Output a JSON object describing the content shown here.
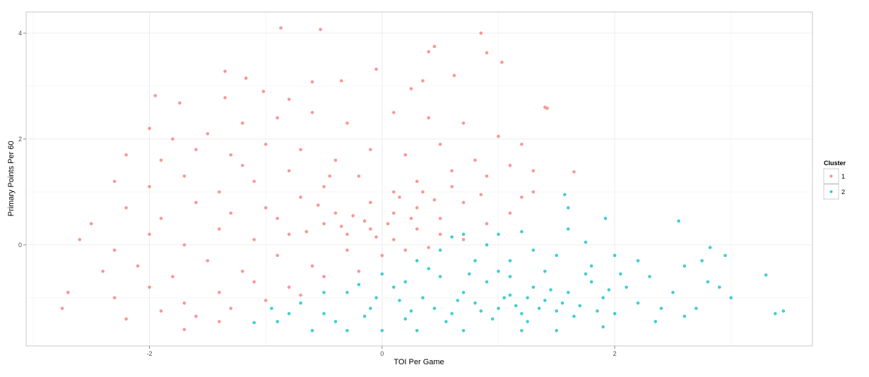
{
  "chart_data": {
    "type": "scatter",
    "title": "",
    "xlabel": "TOI Per Game",
    "ylabel": "Primary Points Per 60",
    "xlim": [
      -3.06,
      3.7
    ],
    "ylim": [
      -1.91,
      4.4
    ],
    "x_ticks": [
      -2,
      0,
      2
    ],
    "y_ticks": [
      0,
      2,
      4
    ],
    "x_tick_labels": [
      "-2",
      "0",
      "2"
    ],
    "y_tick_labels": [
      "0",
      "2",
      "4"
    ],
    "grid": true,
    "legend": {
      "title": "Cluster",
      "placement": "right"
    },
    "series": [
      {
        "name": "1",
        "color": "#F8766D",
        "points": [
          [
            -0.87,
            4.1
          ],
          [
            -0.53,
            4.07
          ],
          [
            0.85,
            4.0
          ],
          [
            0.9,
            3.63
          ],
          [
            1.03,
            3.45
          ],
          [
            0.45,
            3.75
          ],
          [
            0.4,
            3.65
          ],
          [
            -1.35,
            3.28
          ],
          [
            -1.17,
            3.15
          ],
          [
            0.62,
            3.2
          ],
          [
            -0.05,
            3.32
          ],
          [
            -0.35,
            3.1
          ],
          [
            -0.6,
            3.08
          ],
          [
            -1.95,
            2.82
          ],
          [
            -1.74,
            2.68
          ],
          [
            -1.35,
            2.78
          ],
          [
            -1.02,
            2.9
          ],
          [
            -0.8,
            2.75
          ],
          [
            0.25,
            2.95
          ],
          [
            0.35,
            3.1
          ],
          [
            1.4,
            2.6
          ],
          [
            1.42,
            2.58
          ],
          [
            -2.0,
            2.2
          ],
          [
            -1.8,
            2.0
          ],
          [
            -1.5,
            2.1
          ],
          [
            -1.2,
            2.3
          ],
          [
            -0.9,
            2.4
          ],
          [
            -0.6,
            2.5
          ],
          [
            -0.3,
            2.3
          ],
          [
            0.1,
            2.5
          ],
          [
            0.4,
            2.4
          ],
          [
            0.7,
            2.3
          ],
          [
            1.0,
            2.05
          ],
          [
            1.2,
            1.9
          ],
          [
            -2.2,
            1.7
          ],
          [
            -1.9,
            1.6
          ],
          [
            -1.6,
            1.8
          ],
          [
            -1.3,
            1.7
          ],
          [
            -1.0,
            1.9
          ],
          [
            -0.7,
            1.8
          ],
          [
            -0.4,
            1.6
          ],
          [
            -0.1,
            1.8
          ],
          [
            0.2,
            1.7
          ],
          [
            0.5,
            1.9
          ],
          [
            0.8,
            1.6
          ],
          [
            1.1,
            1.5
          ],
          [
            1.3,
            1.4
          ],
          [
            1.65,
            1.38
          ],
          [
            -2.3,
            1.2
          ],
          [
            -2.0,
            1.1
          ],
          [
            -1.7,
            1.3
          ],
          [
            -1.4,
            1.0
          ],
          [
            -1.1,
            1.2
          ],
          [
            -0.8,
            1.4
          ],
          [
            -0.5,
            1.1
          ],
          [
            -0.2,
            1.3
          ],
          [
            0.1,
            1.0
          ],
          [
            0.3,
            1.2
          ],
          [
            0.6,
            1.1
          ],
          [
            0.9,
            1.3
          ],
          [
            1.2,
            0.9
          ],
          [
            1.3,
            1.0
          ],
          [
            -2.5,
            0.4
          ],
          [
            -2.2,
            0.7
          ],
          [
            -1.9,
            0.5
          ],
          [
            -1.6,
            0.8
          ],
          [
            -1.3,
            0.6
          ],
          [
            -1.0,
            0.7
          ],
          [
            -0.7,
            0.9
          ],
          [
            -0.4,
            0.6
          ],
          [
            -0.1,
            0.8
          ],
          [
            0.1,
            0.6
          ],
          [
            0.3,
            0.7
          ],
          [
            0.5,
            0.5
          ],
          [
            0.7,
            0.8
          ],
          [
            0.9,
            0.4
          ],
          [
            1.1,
            0.6
          ],
          [
            -2.6,
            0.1
          ],
          [
            -2.3,
            -0.1
          ],
          [
            -2.0,
            0.2
          ],
          [
            -1.7,
            0.0
          ],
          [
            -1.4,
            0.3
          ],
          [
            -1.1,
            0.1
          ],
          [
            -0.8,
            0.2
          ],
          [
            -0.5,
            0.4
          ],
          [
            -0.3,
            0.2
          ],
          [
            -0.1,
            0.3
          ],
          [
            0.1,
            0.1
          ],
          [
            0.3,
            0.3
          ],
          [
            0.5,
            0.2
          ],
          [
            0.7,
            0.1
          ],
          [
            -2.4,
            -0.5
          ],
          [
            -2.1,
            -0.4
          ],
          [
            -1.8,
            -0.6
          ],
          [
            -1.5,
            -0.3
          ],
          [
            -1.2,
            -0.5
          ],
          [
            -0.9,
            -0.2
          ],
          [
            -0.6,
            -0.4
          ],
          [
            -0.3,
            -0.1
          ],
          [
            0.0,
            -0.2
          ],
          [
            0.2,
            -0.1
          ],
          [
            0.4,
            -0.05
          ],
          [
            -2.7,
            -0.9
          ],
          [
            -2.3,
            -1.0
          ],
          [
            -2.0,
            -0.8
          ],
          [
            -1.7,
            -1.1
          ],
          [
            -1.4,
            -0.9
          ],
          [
            -1.1,
            -0.7
          ],
          [
            -0.8,
            -0.8
          ],
          [
            -0.5,
            -0.6
          ],
          [
            -0.2,
            -0.5
          ],
          [
            -2.75,
            -1.2
          ],
          [
            -2.2,
            -1.4
          ],
          [
            -1.9,
            -1.25
          ],
          [
            -1.6,
            -1.35
          ],
          [
            -1.3,
            -1.2
          ],
          [
            -1.0,
            -1.05
          ],
          [
            -0.7,
            -0.95
          ],
          [
            -1.7,
            -1.6
          ],
          [
            -1.4,
            -1.45
          ],
          [
            -0.25,
            0.55
          ],
          [
            -0.15,
            0.45
          ],
          [
            0.05,
            0.4
          ],
          [
            0.15,
            0.9
          ],
          [
            -0.35,
            0.35
          ],
          [
            -0.55,
            0.75
          ],
          [
            0.25,
            0.5
          ],
          [
            0.35,
            1.0
          ],
          [
            -0.45,
            1.3
          ],
          [
            -0.65,
            0.25
          ],
          [
            0.45,
            0.85
          ],
          [
            0.6,
            1.4
          ],
          [
            -0.9,
            0.5
          ],
          [
            -1.2,
            1.5
          ],
          [
            0.85,
            0.95
          ],
          [
            -0.05,
            0.15
          ]
        ]
      },
      {
        "name": "2",
        "color": "#00BFC4",
        "points": [
          [
            3.3,
            -0.57
          ],
          [
            3.45,
            -1.25
          ],
          [
            3.38,
            -1.3
          ],
          [
            2.55,
            0.45
          ],
          [
            1.92,
            0.5
          ],
          [
            1.57,
            0.95
          ],
          [
            1.6,
            0.7
          ],
          [
            2.82,
            -0.05
          ],
          [
            2.9,
            -0.8
          ],
          [
            2.95,
            -0.2
          ],
          [
            -1.1,
            -1.47
          ],
          [
            -0.9,
            -1.45
          ],
          [
            -0.6,
            -1.62
          ],
          [
            -0.3,
            -1.62
          ],
          [
            0.0,
            -1.62
          ],
          [
            0.3,
            -1.62
          ],
          [
            0.7,
            -1.62
          ],
          [
            1.2,
            -1.62
          ],
          [
            1.5,
            -1.62
          ],
          [
            1.9,
            -1.55
          ],
          [
            -0.95,
            -1.2
          ],
          [
            -0.7,
            -1.1
          ],
          [
            -0.5,
            -1.3
          ],
          [
            -0.3,
            -0.9
          ],
          [
            -0.1,
            -1.2
          ],
          [
            0.1,
            -0.8
          ],
          [
            0.2,
            -1.4
          ],
          [
            0.35,
            -1.0
          ],
          [
            0.5,
            -0.6
          ],
          [
            0.6,
            -1.3
          ],
          [
            0.7,
            -0.9
          ],
          [
            0.8,
            -1.1
          ],
          [
            0.9,
            -0.7
          ],
          [
            1.0,
            -1.2
          ],
          [
            1.1,
            -0.95
          ],
          [
            1.2,
            -1.3
          ],
          [
            1.3,
            -0.8
          ],
          [
            1.4,
            -1.05
          ],
          [
            1.5,
            -1.25
          ],
          [
            1.6,
            -0.9
          ],
          [
            1.7,
            -1.15
          ],
          [
            1.8,
            -0.7
          ],
          [
            1.9,
            -1.0
          ],
          [
            2.0,
            -1.3
          ],
          [
            2.1,
            -0.8
          ],
          [
            2.2,
            -1.1
          ],
          [
            2.3,
            -0.6
          ],
          [
            2.4,
            -1.2
          ],
          [
            2.5,
            -0.9
          ],
          [
            2.6,
            -0.4
          ],
          [
            2.7,
            -1.2
          ],
          [
            2.8,
            -0.7
          ],
          [
            2.2,
            -0.3
          ],
          [
            2.0,
            -0.2
          ],
          [
            1.8,
            -0.4
          ],
          [
            1.5,
            -0.2
          ],
          [
            1.3,
            -0.1
          ],
          [
            1.1,
            -0.3
          ],
          [
            0.9,
            0.0
          ],
          [
            0.7,
            0.2
          ],
          [
            0.6,
            0.15
          ],
          [
            0.5,
            -0.1
          ],
          [
            0.8,
            -0.3
          ],
          [
            1.0,
            -0.5
          ],
          [
            1.4,
            -0.5
          ],
          [
            1.6,
            0.3
          ],
          [
            1.75,
            0.05
          ],
          [
            0.4,
            -0.45
          ],
          [
            0.2,
            -0.7
          ],
          [
            0.0,
            -0.55
          ],
          [
            -0.2,
            -0.75
          ],
          [
            0.15,
            -1.05
          ],
          [
            0.45,
            -1.2
          ],
          [
            0.65,
            -1.05
          ],
          [
            0.85,
            -1.25
          ],
          [
            1.05,
            -1.0
          ],
          [
            1.15,
            -1.15
          ],
          [
            1.25,
            -1.0
          ],
          [
            1.35,
            -1.2
          ],
          [
            1.45,
            -0.85
          ],
          [
            1.55,
            -1.1
          ],
          [
            1.65,
            -1.35
          ],
          [
            1.25,
            -1.45
          ],
          [
            0.95,
            -1.4
          ],
          [
            0.55,
            -1.45
          ],
          [
            -0.4,
            -1.45
          ],
          [
            -0.15,
            -1.35
          ],
          [
            2.35,
            -1.45
          ],
          [
            2.6,
            -1.35
          ],
          [
            3.0,
            -1.0
          ],
          [
            2.75,
            -0.3
          ],
          [
            1.2,
            0.25
          ],
          [
            1.0,
            0.2
          ],
          [
            0.3,
            -0.3
          ],
          [
            -0.5,
            -0.9
          ],
          [
            -0.8,
            -1.3
          ],
          [
            1.75,
            -0.55
          ],
          [
            1.85,
            -1.25
          ],
          [
            2.05,
            -0.55
          ],
          [
            0.75,
            -0.55
          ],
          [
            1.95,
            -0.85
          ],
          [
            1.1,
            -0.6
          ],
          [
            0.25,
            -1.25
          ],
          [
            -0.05,
            -1.0
          ]
        ]
      }
    ]
  }
}
